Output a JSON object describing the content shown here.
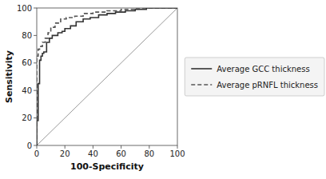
{
  "chart_data": {
    "type": "line",
    "xlabel": "100-Specificity",
    "ylabel": "Sensitivity",
    "xlim": [
      0,
      100
    ],
    "ylim": [
      0,
      100
    ],
    "xticks": [
      0,
      20,
      40,
      60,
      80,
      100
    ],
    "yticks": [
      0,
      20,
      40,
      60,
      80,
      100
    ],
    "legend": "right",
    "series": [
      {
        "name": "Average GCC thickness",
        "color": "#333333",
        "line_style": "solid",
        "x": [
          0,
          0,
          1,
          1,
          2,
          2,
          3,
          3,
          4,
          4,
          5,
          5,
          7,
          7,
          9,
          9,
          11,
          11,
          15,
          15,
          18,
          18,
          20,
          20,
          24,
          24,
          28,
          28,
          33,
          33,
          38,
          38,
          44,
          44,
          50,
          50,
          56,
          56,
          63,
          63,
          70,
          70,
          78,
          78,
          100
        ],
        "values": [
          0,
          18,
          18,
          45,
          45,
          62,
          62,
          65,
          65,
          67,
          67,
          68,
          68,
          75,
          75,
          78,
          78,
          80,
          80,
          82,
          82,
          83,
          83,
          85,
          85,
          87,
          87,
          90,
          90,
          92,
          92,
          93,
          93,
          95,
          95,
          96,
          96,
          97,
          97,
          98,
          98,
          99,
          99,
          100,
          100
        ]
      },
      {
        "name": "Average pRNFL thickness",
        "color": "#555555",
        "line_style": "dashed",
        "x": [
          0,
          0,
          1,
          1,
          2,
          2,
          4,
          4,
          6,
          6,
          8,
          8,
          10,
          10,
          13,
          13,
          17,
          17,
          21,
          21,
          27,
          27,
          33,
          33,
          40,
          40,
          50,
          50,
          60,
          60,
          70,
          70,
          80,
          80,
          100
        ],
        "values": [
          0,
          65,
          65,
          70,
          70,
          72,
          72,
          75,
          75,
          78,
          78,
          82,
          82,
          86,
          86,
          89,
          89,
          92,
          92,
          93,
          93,
          94,
          94,
          96,
          96,
          97,
          97,
          98,
          98,
          99,
          99,
          100,
          100,
          100,
          100
        ]
      },
      {
        "color": "#999999",
        "line_style": "solid",
        "x": [
          0,
          100
        ],
        "values": [
          0,
          100
        ]
      }
    ]
  }
}
